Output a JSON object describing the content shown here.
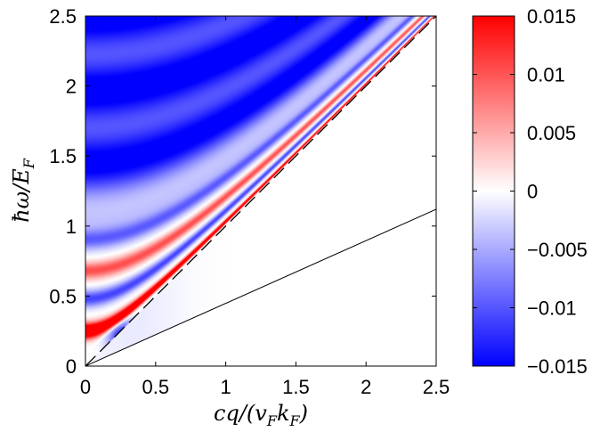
{
  "chart_data": {
    "type": "heatmap",
    "title": "",
    "xlabel": "cq/(v_F k_F)",
    "ylabel": "ħω/E_F",
    "xlabel_parts": {
      "a": "cq/(v",
      "sub1": "F",
      "b": "k",
      "sub2": "F",
      "c": ")"
    },
    "ylabel_parts": {
      "a": "ħω/E",
      "sub": "F"
    },
    "xlim": [
      0,
      2.5
    ],
    "ylim": [
      0,
      2.5
    ],
    "x_ticks": [
      0,
      0.5,
      1,
      1.5,
      2,
      2.5
    ],
    "x_tick_labels": [
      "0",
      "0.5",
      "1",
      "1.5",
      "2",
      "2.5"
    ],
    "y_ticks": [
      0,
      0.5,
      1,
      1.5,
      2,
      2.5
    ],
    "y_tick_labels": [
      "0",
      "0.5",
      "1",
      "1.5",
      "2",
      "2.5"
    ],
    "colorbar": {
      "range": [
        -0.015,
        0.015
      ],
      "ticks": [
        -0.015,
        -0.01,
        -0.005,
        0,
        0.005,
        0.01,
        0.015
      ],
      "tick_labels": [
        "−0.015",
        "−0.01",
        "−0.005",
        "0",
        "0.005",
        "0.01",
        "0.015"
      ],
      "colors": {
        "low": "#0000ff",
        "mid": "#ffffff",
        "high": "#ff0000"
      }
    },
    "lines": [
      {
        "name": "dashed diagonal",
        "style": "dashed",
        "x": [
          0,
          2.5
        ],
        "y": [
          0,
          2.5
        ]
      },
      {
        "name": "solid line",
        "style": "solid",
        "x": [
          0,
          2.5
        ],
        "y": [
          0,
          1.12
        ]
      }
    ],
    "regions": [
      {
        "name": "bright red band",
        "sign": "positive",
        "y_at_x0": 0.25,
        "joins_diagonal_near_x": 0.3
      },
      {
        "name": "light red band",
        "sign": "positive",
        "y_at_x0": 0.7,
        "joins_diagonal_near_x": 0.75
      },
      {
        "name": "pale band",
        "sign": "near zero",
        "y_at_x0": 1.05
      },
      {
        "name": "blue spot",
        "sign": "negative",
        "center": [
          0.3,
          0.2
        ]
      },
      {
        "name": "upper region",
        "sign": "negative",
        "y_range": [
          1.3,
          2.5
        ]
      },
      {
        "name": "blank region",
        "sign": "no data",
        "bounds": "between the two lines"
      }
    ]
  }
}
